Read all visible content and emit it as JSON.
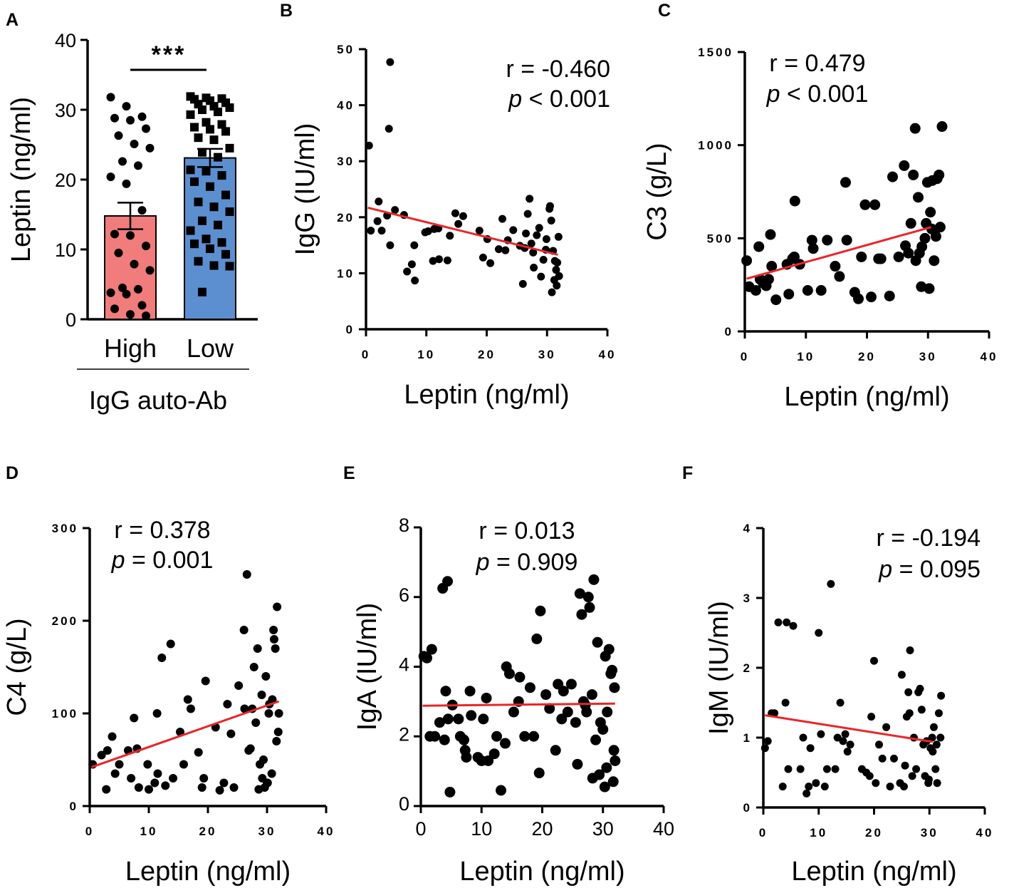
{
  "chart_data": [
    {
      "panel": "A",
      "type": "bar",
      "ylabel": "Leptin (ng/ml)",
      "ylim": [
        0,
        40
      ],
      "yticks": [
        0,
        10,
        20,
        30,
        40
      ],
      "group_title": "IgG auto-Ab",
      "significance": "***",
      "categories": [
        "High",
        "Low"
      ],
      "colors": [
        "#f07c7c",
        "#5b8fd0"
      ],
      "values": [
        14.8,
        23.1
      ],
      "sem": [
        1.9,
        1.3
      ],
      "points": [
        [
          31.8,
          30.5,
          29.0,
          28.8,
          28.5,
          27.3,
          26.3,
          25.1,
          24.5,
          22.6,
          22.0,
          20.4,
          19.4,
          15.6,
          12.2,
          12.0,
          10.5,
          9.5,
          7.9,
          7.0,
          4.5,
          4.3,
          3.8,
          3.6,
          2.0,
          1.5,
          0.7,
          0.5
        ],
        [
          31.9,
          31.7,
          31.6,
          31.5,
          31.3,
          31.0,
          30.8,
          30.5,
          30.3,
          30.0,
          29.7,
          29.3,
          28.2,
          27.9,
          27.5,
          27.2,
          26.9,
          26.0,
          25.7,
          24.5,
          23.9,
          23.2,
          21.4,
          21.2,
          20.6,
          19.7,
          19.0,
          17.8,
          16.8,
          16.1,
          15.4,
          14.1,
          13.5,
          12.7,
          11.5,
          11.0,
          10.8,
          10.1,
          9.3,
          8.3,
          7.7,
          7.6,
          3.9
        ]
      ]
    },
    {
      "panel": "B",
      "type": "scatter",
      "xlabel": "Leptin (ng/ml)",
      "ylabel": "IgG (IU/ml)",
      "xlim": [
        0,
        40
      ],
      "ylim": [
        0,
        50
      ],
      "xticks": [
        0,
        10,
        20,
        30,
        40
      ],
      "yticks": [
        0,
        10,
        20,
        30,
        40,
        50
      ],
      "stat_r": "r = -0.460",
      "stat_p_sym": "p",
      "stat_p_rest": " < 0.001",
      "stat_anchor": "end",
      "fit": [
        [
          0.3,
          21.7
        ],
        [
          31.8,
          13.3
        ]
      ],
      "x": [
        0.5,
        0.8,
        1.9,
        2.1,
        2.6,
        3.5,
        3.8,
        4.0,
        4.0,
        4.8,
        6.3,
        6.8,
        7.6,
        8.0,
        8.1,
        9.8,
        10.3,
        11.1,
        11.3,
        12.0,
        12.1,
        13.5,
        13.9,
        14.8,
        15.3,
        16.1,
        18.8,
        19.4,
        20.1,
        20.6,
        22.0,
        22.6,
        23.1,
        23.5,
        24.4,
        25.5,
        26.0,
        26.3,
        26.5,
        26.8,
        27.1,
        27.4,
        27.7,
        27.8,
        28.3,
        28.7,
        29.0,
        29.4,
        29.8,
        29.9,
        30.4,
        30.7,
        30.8,
        31.0,
        31.3,
        31.5,
        31.6,
        31.9,
        32.0,
        31.7,
        31.2,
        30.5
      ],
      "y": [
        32.8,
        17.6,
        19.3,
        22.8,
        17.6,
        20.3,
        35.8,
        47.7,
        15.0,
        21.3,
        20.4,
        10.3,
        11.6,
        15.0,
        8.7,
        17.3,
        17.5,
        12.2,
        17.9,
        18.0,
        12.5,
        12.3,
        16.7,
        20.7,
        18.8,
        20.2,
        17.6,
        12.8,
        16.1,
        11.8,
        14.3,
        19.7,
        14.1,
        15.9,
        17.7,
        14.9,
        8.1,
        14.5,
        17.1,
        20.6,
        23.3,
        15.3,
        13.7,
        11.0,
        16.8,
        18.1,
        9.4,
        12.4,
        14.2,
        16.1,
        21.5,
        19.4,
        6.6,
        14.0,
        12.2,
        10.6,
        7.8,
        16.5,
        9.5,
        11.9,
        8.8,
        22.0
      ]
    },
    {
      "panel": "C",
      "type": "scatter",
      "xlabel": "Leptin (ng/ml)",
      "ylabel": "C3 (g/L)",
      "xlim": [
        0,
        40
      ],
      "ylim": [
        0,
        1500
      ],
      "xticks": [
        0,
        10,
        20,
        30,
        40
      ],
      "yticks": [
        0,
        500,
        1000,
        1500
      ],
      "stat_r": "r = 0.479",
      "stat_p_sym": "p",
      "stat_p_rest": " < 0.001",
      "stat_anchor": "middle",
      "fit": [
        [
          0.3,
          283
        ],
        [
          30.5,
          560
        ]
      ],
      "x": [
        0.3,
        0.7,
        1.8,
        2.3,
        2.5,
        3.0,
        3.5,
        4.2,
        4.4,
        3.9,
        5.1,
        6.9,
        7.2,
        7.8,
        8.1,
        8.2,
        9.0,
        10.3,
        11.0,
        11.2,
        12.5,
        13.5,
        14.8,
        15.5,
        16.5,
        16.7,
        18.0,
        18.6,
        19.1,
        19.7,
        20.7,
        21.3,
        21.9,
        22.3,
        23.7,
        24.2,
        25.2,
        26.1,
        26.3,
        26.8,
        27.2,
        27.6,
        27.9,
        28.0,
        28.4,
        28.6,
        29.0,
        29.5,
        29.9,
        30.4,
        30.7,
        31.0,
        31.5,
        31.8,
        32.0,
        32.3,
        31.3,
        30.6,
        29.7,
        28.9,
        30.2
      ],
      "y": [
        380,
        240,
        220,
        455,
        280,
        260,
        245,
        520,
        350,
        280,
        170,
        360,
        200,
        390,
        400,
        700,
        360,
        220,
        490,
        445,
        220,
        490,
        350,
        295,
        800,
        490,
        210,
        175,
        400,
        680,
        185,
        680,
        390,
        390,
        190,
        830,
        400,
        890,
        460,
        420,
        580,
        840,
        1090,
        380,
        720,
        420,
        455,
        500,
        800,
        640,
        810,
        380,
        820,
        840,
        560,
        1100,
        510,
        550,
        580,
        240,
        230
      ]
    },
    {
      "panel": "D",
      "type": "scatter",
      "xlabel": "Leptin (ng/ml)",
      "ylabel": "C4 (g/L)",
      "xlim": [
        0,
        40
      ],
      "ylim": [
        0,
        300
      ],
      "xticks": [
        0,
        10,
        20,
        30,
        40
      ],
      "yticks": [
        0,
        100,
        200,
        300
      ],
      "stat_r": "r = 0.378",
      "stat_p_sym": "p",
      "stat_p_rest": " = 0.001",
      "stat_anchor": "middle",
      "fit": [
        [
          0.3,
          42
        ],
        [
          32.0,
          113
        ]
      ],
      "x": [
        0.5,
        2.0,
        2.8,
        3.0,
        3.8,
        4.3,
        5.0,
        6.5,
        7.0,
        7.5,
        8.0,
        8.3,
        9.8,
        10.0,
        11.0,
        11.4,
        11.5,
        12.2,
        12.8,
        13.7,
        14.1,
        15.3,
        15.9,
        16.6,
        17.1,
        18.4,
        19.0,
        19.3,
        19.6,
        21.3,
        22.0,
        22.7,
        23.3,
        23.9,
        24.4,
        25.2,
        26.1,
        26.2,
        26.6,
        26.9,
        27.2,
        27.5,
        27.8,
        28.1,
        28.4,
        28.6,
        28.8,
        29.1,
        29.4,
        29.6,
        29.8,
        30.0,
        30.3,
        30.4,
        30.9,
        31.1,
        31.4,
        31.7,
        31.9,
        32.0,
        31.6,
        30.8,
        30.1,
        31.2,
        29.2
      ],
      "y": [
        45,
        55,
        18,
        60,
        75,
        35,
        45,
        60,
        30,
        95,
        62,
        20,
        45,
        18,
        25,
        100,
        35,
        160,
        22,
        175,
        30,
        80,
        45,
        115,
        105,
        58,
        20,
        30,
        135,
        85,
        17,
        25,
        110,
        78,
        20,
        130,
        190,
        105,
        250,
        60,
        62,
        105,
        150,
        90,
        170,
        18,
        45,
        120,
        50,
        20,
        140,
        25,
        100,
        110,
        115,
        190,
        170,
        215,
        80,
        100,
        70,
        35,
        25,
        180,
        30
      ]
    },
    {
      "panel": "E",
      "type": "scatter",
      "xlabel": "Leptin (ng/ml)",
      "ylabel": "IgA (IU/ml)",
      "xlim": [
        0,
        40
      ],
      "ylim": [
        0,
        8
      ],
      "xticks": [
        0,
        10,
        20,
        30,
        40
      ],
      "yticks": [
        0,
        2,
        4,
        6,
        8
      ],
      "stat_r": "r = 0.013",
      "stat_p_sym": "p",
      "stat_p_rest": " = 0.909",
      "stat_anchor": "middle",
      "fit": [
        [
          0.3,
          2.88
        ],
        [
          32.0,
          2.94
        ]
      ],
      "x": [
        0.5,
        1.0,
        1.5,
        1.8,
        2.3,
        3.1,
        3.6,
        3.9,
        4.1,
        4.4,
        4.5,
        4.8,
        5.2,
        6.2,
        6.5,
        7.1,
        7.3,
        7.5,
        8.1,
        8.3,
        9.4,
        10.0,
        10.3,
        10.8,
        11.1,
        12.1,
        12.5,
        13.2,
        13.9,
        14.1,
        14.6,
        15.3,
        16.1,
        16.3,
        17.1,
        18.0,
        18.6,
        19.1,
        19.5,
        19.7,
        20.6,
        21.2,
        22.2,
        22.6,
        23.2,
        23.5,
        24.2,
        24.8,
        25.5,
        25.8,
        26.2,
        26.5,
        26.8,
        27.1,
        27.3,
        27.6,
        27.8,
        28.2,
        28.5,
        28.8,
        29.1,
        29.4,
        29.6,
        30.0,
        30.4,
        30.6,
        31.0,
        31.3,
        31.5,
        31.8,
        32.0,
        31.7,
        30.3,
        30.7,
        31.9,
        28.3
      ],
      "y": [
        4.3,
        4.25,
        2.0,
        4.5,
        2.0,
        2.4,
        6.25,
        1.9,
        3.3,
        6.45,
        2.5,
        0.4,
        2.9,
        2.5,
        2.0,
        1.9,
        1.6,
        1.4,
        3.3,
        2.6,
        1.4,
        1.3,
        2.5,
        3.1,
        1.3,
        1.5,
        2.0,
        0.45,
        1.8,
        4.0,
        3.8,
        2.7,
        3.0,
        3.7,
        2.0,
        3.4,
        2.0,
        4.8,
        0.95,
        5.6,
        3.2,
        2.8,
        1.6,
        3.5,
        2.5,
        3.3,
        2.7,
        3.5,
        2.4,
        1.2,
        6.1,
        5.5,
        3.0,
        2.9,
        2.7,
        6.0,
        5.7,
        3.2,
        6.5,
        1.9,
        4.7,
        0.9,
        2.4,
        2.2,
        4.3,
        1.1,
        4.5,
        3.8,
        3.9,
        1.6,
        1.3,
        0.7,
        0.55,
        2.7,
        3.4,
        0.8
      ]
    },
    {
      "panel": "F",
      "type": "scatter",
      "xlabel": "Leptin (ng/ml)",
      "ylabel": "IgM (IU/ml)",
      "xlim": [
        0,
        40
      ],
      "ylim": [
        0,
        4
      ],
      "xticks": [
        0,
        10,
        20,
        30,
        40
      ],
      "yticks": [
        0,
        1,
        2,
        3,
        4
      ],
      "stat_r": "r = -0.194",
      "stat_p_sym": "p",
      "stat_p_rest": " = 0.095",
      "stat_anchor": "end",
      "fit": [
        [
          0.3,
          1.32
        ],
        [
          30.6,
          0.94
        ]
      ],
      "x": [
        0.3,
        0.8,
        1.5,
        2.0,
        2.7,
        3.5,
        4.0,
        4.2,
        4.5,
        5.4,
        6.7,
        7.2,
        7.8,
        8.2,
        8.5,
        9.5,
        10.0,
        10.4,
        11.1,
        11.5,
        12.2,
        13.0,
        13.4,
        13.9,
        14.4,
        14.8,
        15.2,
        15.7,
        17.8,
        18.6,
        19.2,
        19.5,
        20.0,
        20.3,
        20.9,
        21.5,
        22.2,
        22.9,
        23.6,
        24.7,
        25.0,
        25.4,
        25.6,
        25.9,
        26.2,
        26.5,
        26.9,
        27.2,
        27.6,
        28.0,
        28.3,
        28.6,
        28.9,
        29.2,
        29.5,
        29.8,
        30.2,
        30.5,
        30.8,
        31.1,
        31.4,
        31.7,
        32.0,
        32.1,
        31.3,
        29.9,
        30.6,
        26.4
      ],
      "y": [
        0.85,
        0.95,
        1.35,
        1.35,
        2.65,
        0.3,
        1.5,
        2.65,
        0.55,
        2.6,
        0.55,
        1.0,
        0.2,
        0.3,
        0.85,
        0.35,
        2.5,
        1.05,
        0.3,
        0.55,
        3.2,
        0.55,
        1.0,
        1.5,
        0.95,
        1.05,
        0.8,
        0.9,
        0.55,
        0.5,
        0.45,
        1.3,
        2.1,
        0.35,
        0.9,
        0.7,
        1.15,
        0.3,
        0.7,
        0.35,
        1.9,
        0.3,
        0.6,
        1.3,
        1.65,
        2.25,
        0.45,
        1.0,
        0.55,
        1.65,
        1.7,
        1.4,
        0.9,
        0.45,
        0.95,
        0.35,
        0.85,
        1.0,
        1.15,
        0.55,
        0.35,
        1.35,
        1.0,
        1.6,
        0.9,
        0.4,
        0.8,
        1.35
      ]
    }
  ]
}
